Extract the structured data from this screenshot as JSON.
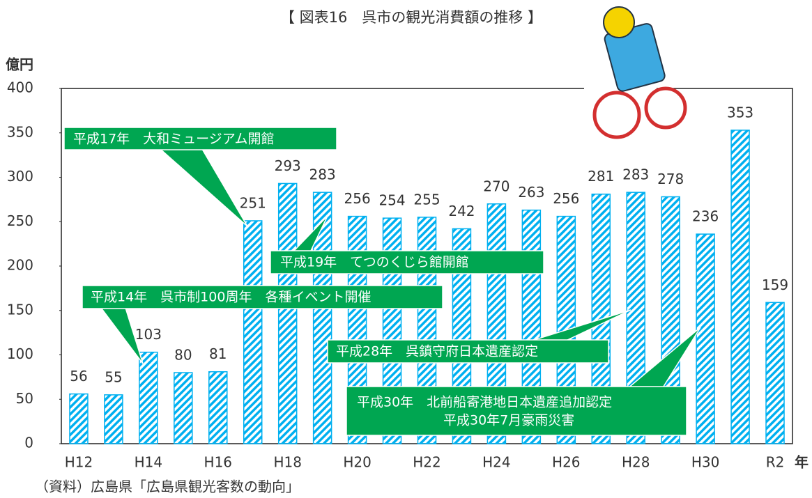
{
  "chart_data": {
    "type": "bar",
    "title": "【 図表16　呉市の観光消費額の推移 】",
    "y_label": "億円",
    "x_label": "年",
    "source": "（資料）広島県「広島県観光客数の動向」",
    "categories": [
      "H12",
      null,
      "H14",
      null,
      "H16",
      null,
      "H18",
      null,
      "H20",
      null,
      "H22",
      null,
      "H24",
      null,
      "H26",
      null,
      "H28",
      null,
      "H30",
      null,
      "R2"
    ],
    "values": [
      56,
      55,
      103,
      80,
      81,
      251,
      293,
      283,
      256,
      254,
      255,
      242,
      270,
      263,
      256,
      281,
      283,
      278,
      236,
      353,
      159
    ],
    "color": "#00b0f0",
    "ylim": [
      0,
      400
    ],
    "yticks": [
      0,
      50,
      100,
      150,
      200,
      250,
      300,
      350,
      400
    ],
    "grid": false,
    "annotations": [
      [
        "平成17年　大和ミュージアム開館"
      ],
      [
        "平成19年　てつのくじら館開館"
      ],
      [
        "平成14年　呉市制100周年　各種イベント開催"
      ],
      [
        "平成28年　呉鎮守府日本遺産認定"
      ],
      [
        "平成30年　北前船寄港地日本遺産追加認定",
        "平成30年7月豪雨災害"
      ]
    ]
  }
}
